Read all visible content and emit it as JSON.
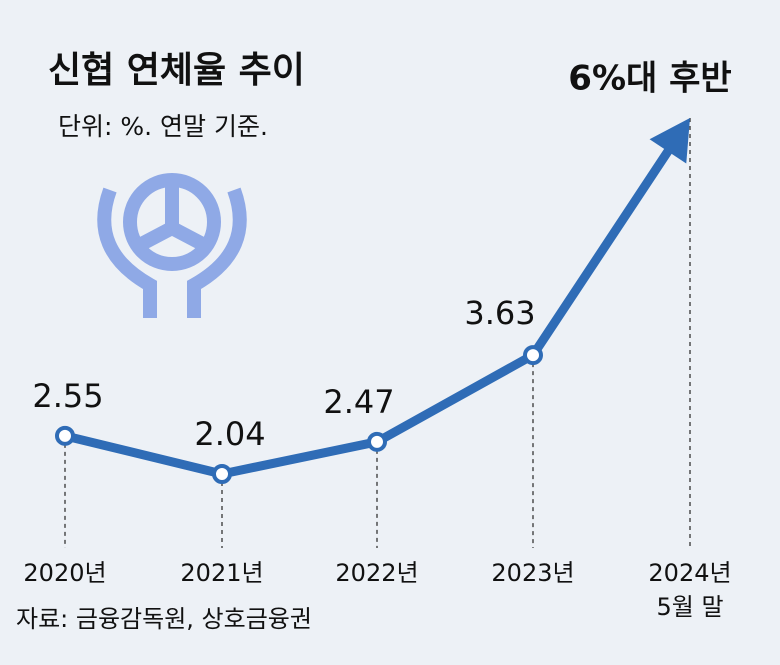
{
  "chart_data": {
    "type": "line",
    "title": "신협 연체율 추이",
    "subtitle": "단위: %. 연말 기준.",
    "source": "자료: 금융감독원, 상호금융권",
    "categories": [
      "2020년",
      "2021년",
      "2022년",
      "2023년",
      "2024년\n5월 말"
    ],
    "values": [
      2.55,
      2.04,
      2.47,
      3.63,
      6.8
    ],
    "value_labels": [
      "2.55",
      "2.04",
      "2.47",
      "3.63",
      "6%대 후반"
    ],
    "color": "#2f6cb6"
  }
}
